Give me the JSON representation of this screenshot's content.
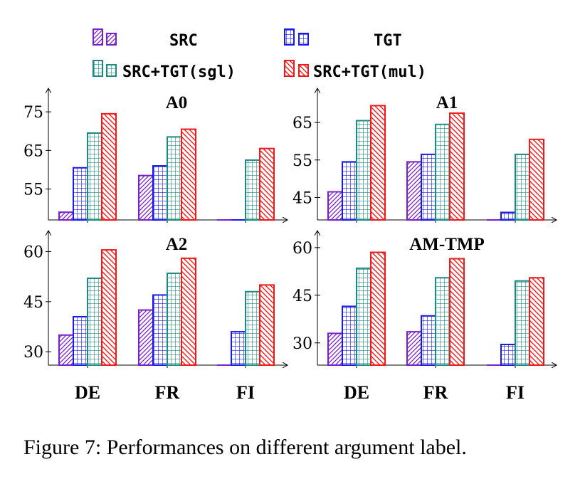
{
  "legend": [
    {
      "name": "SRC",
      "color": "#7a1fc9",
      "pattern": "hatch"
    },
    {
      "name": "TGT",
      "color": "#1a1ae6",
      "pattern": "grid"
    },
    {
      "name": "SRC+TGT(sgl)",
      "color": "#1a8a85",
      "pattern": "grid"
    },
    {
      "name": "SRC+TGT(mul)",
      "color": "#f01818",
      "pattern": "hatch-back"
    }
  ],
  "caption": "Figure 7: Performances on different argument label.",
  "chart_data": [
    {
      "type": "bar",
      "title": "A0",
      "categories": [
        "DE",
        "FR",
        "FI"
      ],
      "series": [
        {
          "name": "SRC",
          "values": [
            49,
            58.5,
            null
          ]
        },
        {
          "name": "TGT",
          "values": [
            60.5,
            61,
            null
          ]
        },
        {
          "name": "SRC+TGT(sgl)",
          "values": [
            69.5,
            68.5,
            62.5
          ]
        },
        {
          "name": "SRC+TGT(mul)",
          "values": [
            74.5,
            70.5,
            65.5
          ]
        }
      ],
      "yticks": [
        55,
        65,
        75
      ],
      "ylim": [
        47,
        80
      ],
      "show_category_labels": false
    },
    {
      "type": "bar",
      "title": "A1",
      "categories": [
        "DE",
        "FR",
        "FI"
      ],
      "series": [
        {
          "name": "SRC",
          "values": [
            46.5,
            54.5,
            null
          ]
        },
        {
          "name": "TGT",
          "values": [
            54.5,
            56.5,
            41
          ]
        },
        {
          "name": "SRC+TGT(sgl)",
          "values": [
            65.5,
            64.5,
            56.5
          ]
        },
        {
          "name": "SRC+TGT(mul)",
          "values": [
            69.5,
            67.5,
            60.5
          ]
        }
      ],
      "yticks": [
        45,
        55,
        65
      ],
      "ylim": [
        39,
        73
      ],
      "show_category_labels": false
    },
    {
      "type": "bar",
      "title": "A2",
      "categories": [
        "DE",
        "FR",
        "FI"
      ],
      "series": [
        {
          "name": "SRC",
          "values": [
            35,
            42.5,
            null
          ]
        },
        {
          "name": "TGT",
          "values": [
            40.5,
            47,
            36
          ]
        },
        {
          "name": "SRC+TGT(sgl)",
          "values": [
            52,
            53.5,
            48
          ]
        },
        {
          "name": "SRC+TGT(mul)",
          "values": [
            60.5,
            58,
            50
          ]
        }
      ],
      "yticks": [
        30,
        45,
        60
      ],
      "ylim": [
        26,
        65
      ],
      "show_category_labels": true
    },
    {
      "type": "bar",
      "title": "AM-TMP",
      "categories": [
        "DE",
        "FR",
        "FI"
      ],
      "series": [
        {
          "name": "SRC",
          "values": [
            33,
            33.5,
            null
          ]
        },
        {
          "name": "TGT",
          "values": [
            41.5,
            38.5,
            29.5
          ]
        },
        {
          "name": "SRC+TGT(sgl)",
          "values": [
            53.5,
            50.5,
            49.5
          ]
        },
        {
          "name": "SRC+TGT(mul)",
          "values": [
            58.5,
            56.5,
            50.5
          ]
        }
      ],
      "yticks": [
        30,
        45,
        60
      ],
      "ylim": [
        23,
        64
      ],
      "show_category_labels": true
    }
  ]
}
